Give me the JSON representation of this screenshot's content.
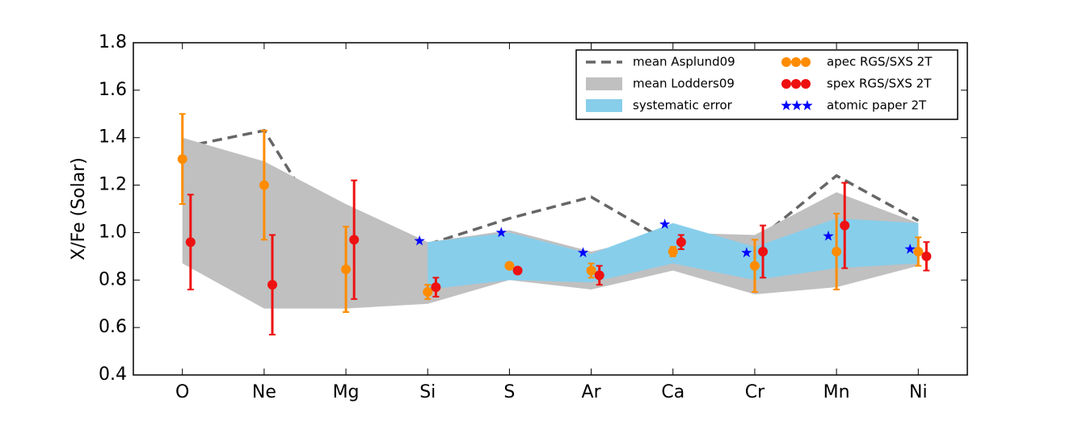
{
  "chart_data": {
    "type": "errorbar",
    "ylabel": "X/Fe (Solar)",
    "categories": [
      "O",
      "Ne",
      "Mg",
      "Si",
      "S",
      "Ar",
      "Ca",
      "Cr",
      "Mn",
      "Ni"
    ],
    "ylim": [
      0.4,
      1.8
    ],
    "yticks": [
      0.4,
      0.6,
      0.8,
      {
        "value": 1.0,
        "label": "1.0"
      },
      1.2,
      1.4,
      1.6,
      1.8
    ],
    "legend": "upper right",
    "series": [
      {
        "name": "mean Asplund09",
        "type": "line",
        "linestyle": "dashed",
        "color": "#666666",
        "values": [
          1.36,
          1.43,
          0.88,
          0.95,
          1.06,
          1.15,
          0.95,
          0.96,
          1.24,
          1.05
        ]
      },
      {
        "name": "mean Lodders09",
        "type": "band",
        "color": "#c0c0c0",
        "lower": [
          0.87,
          0.68,
          0.68,
          0.7,
          0.8,
          0.76,
          0.84,
          0.74,
          0.77,
          0.86
        ],
        "upper": [
          1.4,
          1.3,
          1.12,
          0.96,
          1.01,
          0.92,
          1.0,
          0.99,
          1.17,
          1.04
        ]
      },
      {
        "name": "systematic error",
        "type": "band",
        "color": "#87ceeb",
        "lower": [
          null,
          null,
          null,
          0.76,
          0.8,
          0.79,
          0.87,
          0.8,
          0.85,
          0.87
        ],
        "upper": [
          null,
          null,
          null,
          0.96,
          1.0,
          0.91,
          1.04,
          0.94,
          1.06,
          1.04
        ]
      },
      {
        "name": "apec RGS/SXS 2T",
        "type": "errorbar",
        "color": "#ff8c00",
        "values": [
          1.31,
          1.2,
          0.845,
          0.75,
          0.86,
          0.84,
          0.92,
          0.86,
          0.92,
          0.92
        ],
        "errors": [
          0.19,
          0.23,
          0.18,
          0.03,
          0.01,
          0.03,
          0.02,
          0.11,
          0.16,
          0.06
        ]
      },
      {
        "name": "spex RGS/SXS 2T",
        "type": "errorbar",
        "color": "#ee1111",
        "values": [
          0.96,
          0.78,
          0.97,
          0.77,
          0.84,
          0.82,
          0.96,
          0.92,
          1.03,
          0.9
        ],
        "errors": [
          0.2,
          0.21,
          0.25,
          0.04,
          0.01,
          0.04,
          0.03,
          0.11,
          0.18,
          0.06
        ]
      },
      {
        "name": "atomic paper 2T",
        "type": "scatter",
        "marker": "star",
        "color": "#0000ff",
        "values": [
          null,
          null,
          null,
          0.965,
          1.0,
          0.915,
          1.035,
          0.915,
          0.985,
          0.93
        ]
      }
    ]
  }
}
